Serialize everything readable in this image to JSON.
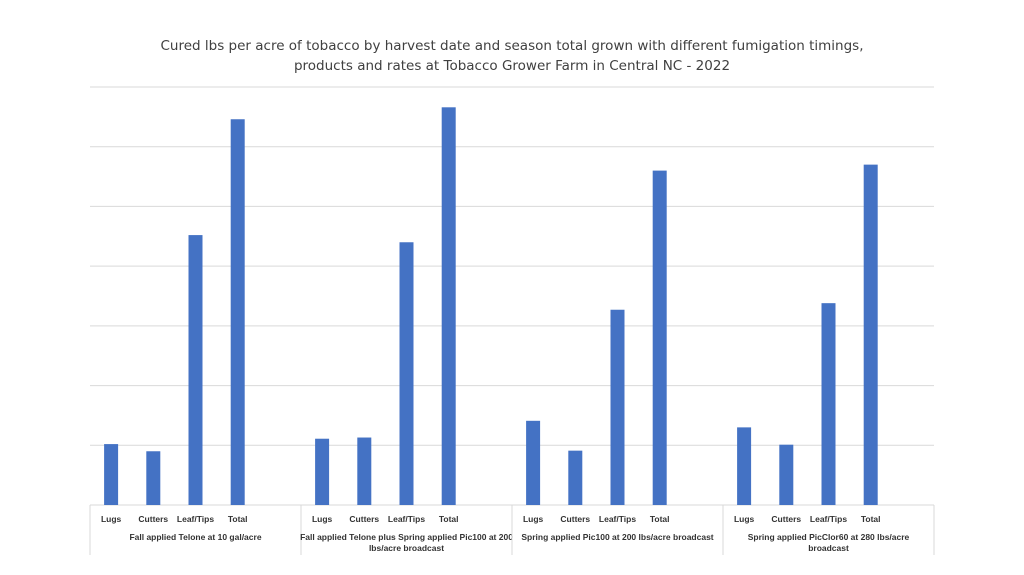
{
  "chart_data": {
    "type": "bar",
    "title_lines": [
      "Cured lbs per acre of tobacco by harvest date and season total grown with different fumigation timings,",
      "products and rates at Tobacco Grower Farm in Central NC - 2022"
    ],
    "xlabel": "",
    "ylabel": "",
    "y_axis_labels_shown": false,
    "ylim": [
      0,
      3500
    ],
    "grid": true,
    "categories": [
      "Lugs",
      "Cutters",
      "Leaf/Tips",
      "Total"
    ],
    "groups": [
      {
        "label": "Fall applied Telone at 10 gal/acre",
        "label_lines": [
          "Fall applied Telone at 10 gal/acre"
        ],
        "values": [
          510,
          450,
          2260,
          3230
        ]
      },
      {
        "label": "Fall applied Telone plus Spring applied Pic100 at 200 lbs/acre broadcast",
        "label_lines": [
          "Fall applied Telone plus Spring applied Pic100 at 200",
          "lbs/acre broadcast"
        ],
        "values": [
          555,
          565,
          2200,
          3330
        ]
      },
      {
        "label": "Spring applied Pic100 at 200 lbs/acre broadcast",
        "label_lines": [
          "Spring applied Pic100 at 200 lbs/acre broadcast"
        ],
        "values": [
          705,
          455,
          1635,
          2800
        ]
      },
      {
        "label": "Spring applied PicClor60 at 280 lbs/acre broadcast",
        "label_lines": [
          "Spring applied PicClor60 at 280 lbs/acre",
          "broadcast"
        ],
        "values": [
          650,
          505,
          1690,
          2850
        ]
      }
    ],
    "colors": {
      "bar": "#4472C4",
      "grid": "#D9D9D9",
      "axis": "#D9D9D9",
      "text": "#404040"
    }
  }
}
